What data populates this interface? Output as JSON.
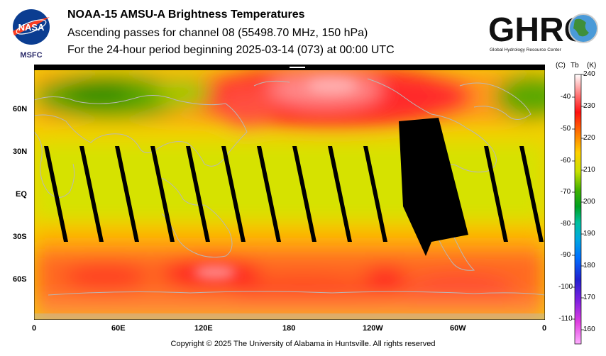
{
  "header": {
    "nasa_logo_text": "NASA",
    "msfc_label": "MSFC",
    "title": "NOAA-15 AMSU-A Brightness Temperatures",
    "subtitle": "Ascending passes for channel 08 (55498.70 MHz, 150 hPa)",
    "period": "For the 24-hour period beginning 2025-03-14 (073) at 00:00 UTC",
    "ghrc_logo_text": "GHRC",
    "ghrc_tagline": "Global Hydrology Resource Center"
  },
  "map": {
    "lon_labels": [
      "0",
      "60E",
      "120E",
      "180",
      "120W",
      "60W",
      "0"
    ],
    "lat_labels": [
      "60N",
      "30N",
      "EQ",
      "30S",
      "60S"
    ],
    "colors": {
      "warm": "#ff2020",
      "mid": "#ffd400",
      "cool": "#20a000",
      "swath_gap": "#000000",
      "coast": "#b8b8b8"
    }
  },
  "colorbar": {
    "header_c": "(C)",
    "header_tb": "Tb",
    "header_k": "(K)",
    "celsius_ticks": [
      "-40",
      "-50",
      "-60",
      "-70",
      "-80",
      "-90",
      "-100",
      "-110"
    ],
    "kelvin_ticks": [
      "240",
      "230",
      "220",
      "210",
      "200",
      "190",
      "180",
      "170",
      "160"
    ]
  },
  "footer": {
    "copyright": "Copyright © 2025 The University of Alabama in Huntsville.  All rights reserved"
  }
}
